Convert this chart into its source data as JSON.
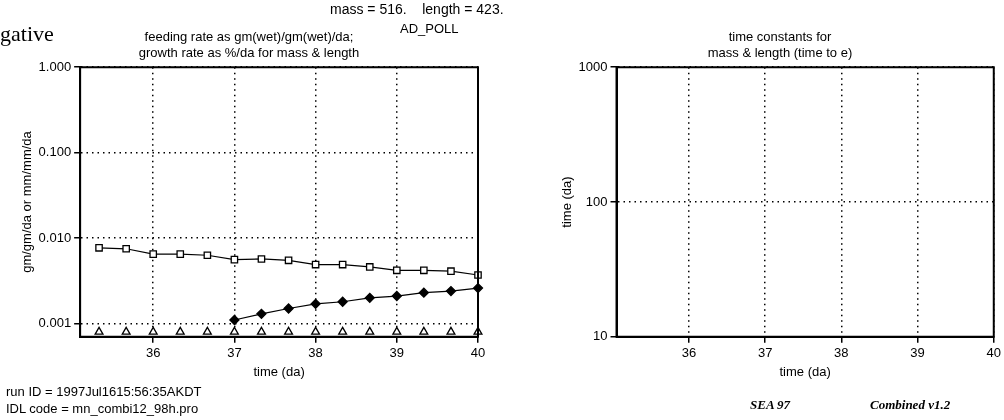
{
  "chart_data": [
    {
      "type": "line",
      "title": "feeding rate as gm(wet)/gm(wet)/da;\ngrowth rate as %/da for mass & length",
      "xlabel": "time (da)",
      "ylabel": "gm/gm/da or mm/mm/da",
      "x": [
        35.333,
        35.667,
        36,
        36.333,
        36.667,
        37,
        37.333,
        37.667,
        38,
        38.333,
        38.667,
        39,
        39.333,
        39.667,
        40
      ],
      "series": [
        {
          "type": "line",
          "color": "#000000",
          "marker": "square",
          "values": [
            0.0077,
            0.0075,
            0.0065,
            0.0065,
            0.0063,
            0.0056,
            0.0057,
            0.0055,
            0.0049,
            0.0049,
            0.0046,
            0.0042,
            0.0042,
            0.0041,
            0.0037
          ]
        },
        {
          "type": "line",
          "color": "#000000",
          "marker": "diamond",
          "values": [
            null,
            null,
            null,
            null,
            null,
            0.0011,
            0.0013,
            0.0015,
            0.0017,
            0.0018,
            0.002,
            0.0021,
            0.0023,
            0.0024,
            0.0026
          ]
        },
        {
          "type": "scatter",
          "color": "#000000",
          "marker": "triangle",
          "values": [
            0.0008,
            0.0008,
            0.0008,
            0.0008,
            0.0008,
            0.0008,
            0.0008,
            0.0008,
            0.0008,
            0.0008,
            0.0008,
            0.0008,
            0.0008,
            0.0008,
            0.0008
          ]
        }
      ],
      "xlim": [
        35.1,
        40
      ],
      "xticks": [
        36,
        37,
        38,
        39,
        40
      ],
      "ylim": [
        0.0007,
        1
      ],
      "yticks": [
        {
          "value": 1,
          "label": "1.000"
        },
        {
          "value": 0.1,
          "label": "0.100"
        },
        {
          "value": 0.01,
          "label": "0.010"
        },
        0.001
      ],
      "log": "y",
      "grid": true,
      "annotations": [
        "gative",
        "mass = 516.    length = 423.",
        "AD_POLL",
        "run ID = 1997Jul1615:56:35AKDT",
        "IDL code = mn_combi12_98h.pro"
      ]
    },
    {
      "type": "line",
      "title": "time constants for\nmass & length (time to e)",
      "xlabel": "time (da)",
      "ylabel": "time (da)",
      "xlim": [
        35.05,
        40
      ],
      "xticks": [
        36,
        37,
        38,
        39,
        40
      ],
      "ylim": [
        10,
        1000
      ],
      "yticks": [
        10,
        100,
        1000
      ],
      "log": "y",
      "grid": true,
      "annotations": [
        "SEA 97",
        "Combined v1.2"
      ]
    }
  ]
}
